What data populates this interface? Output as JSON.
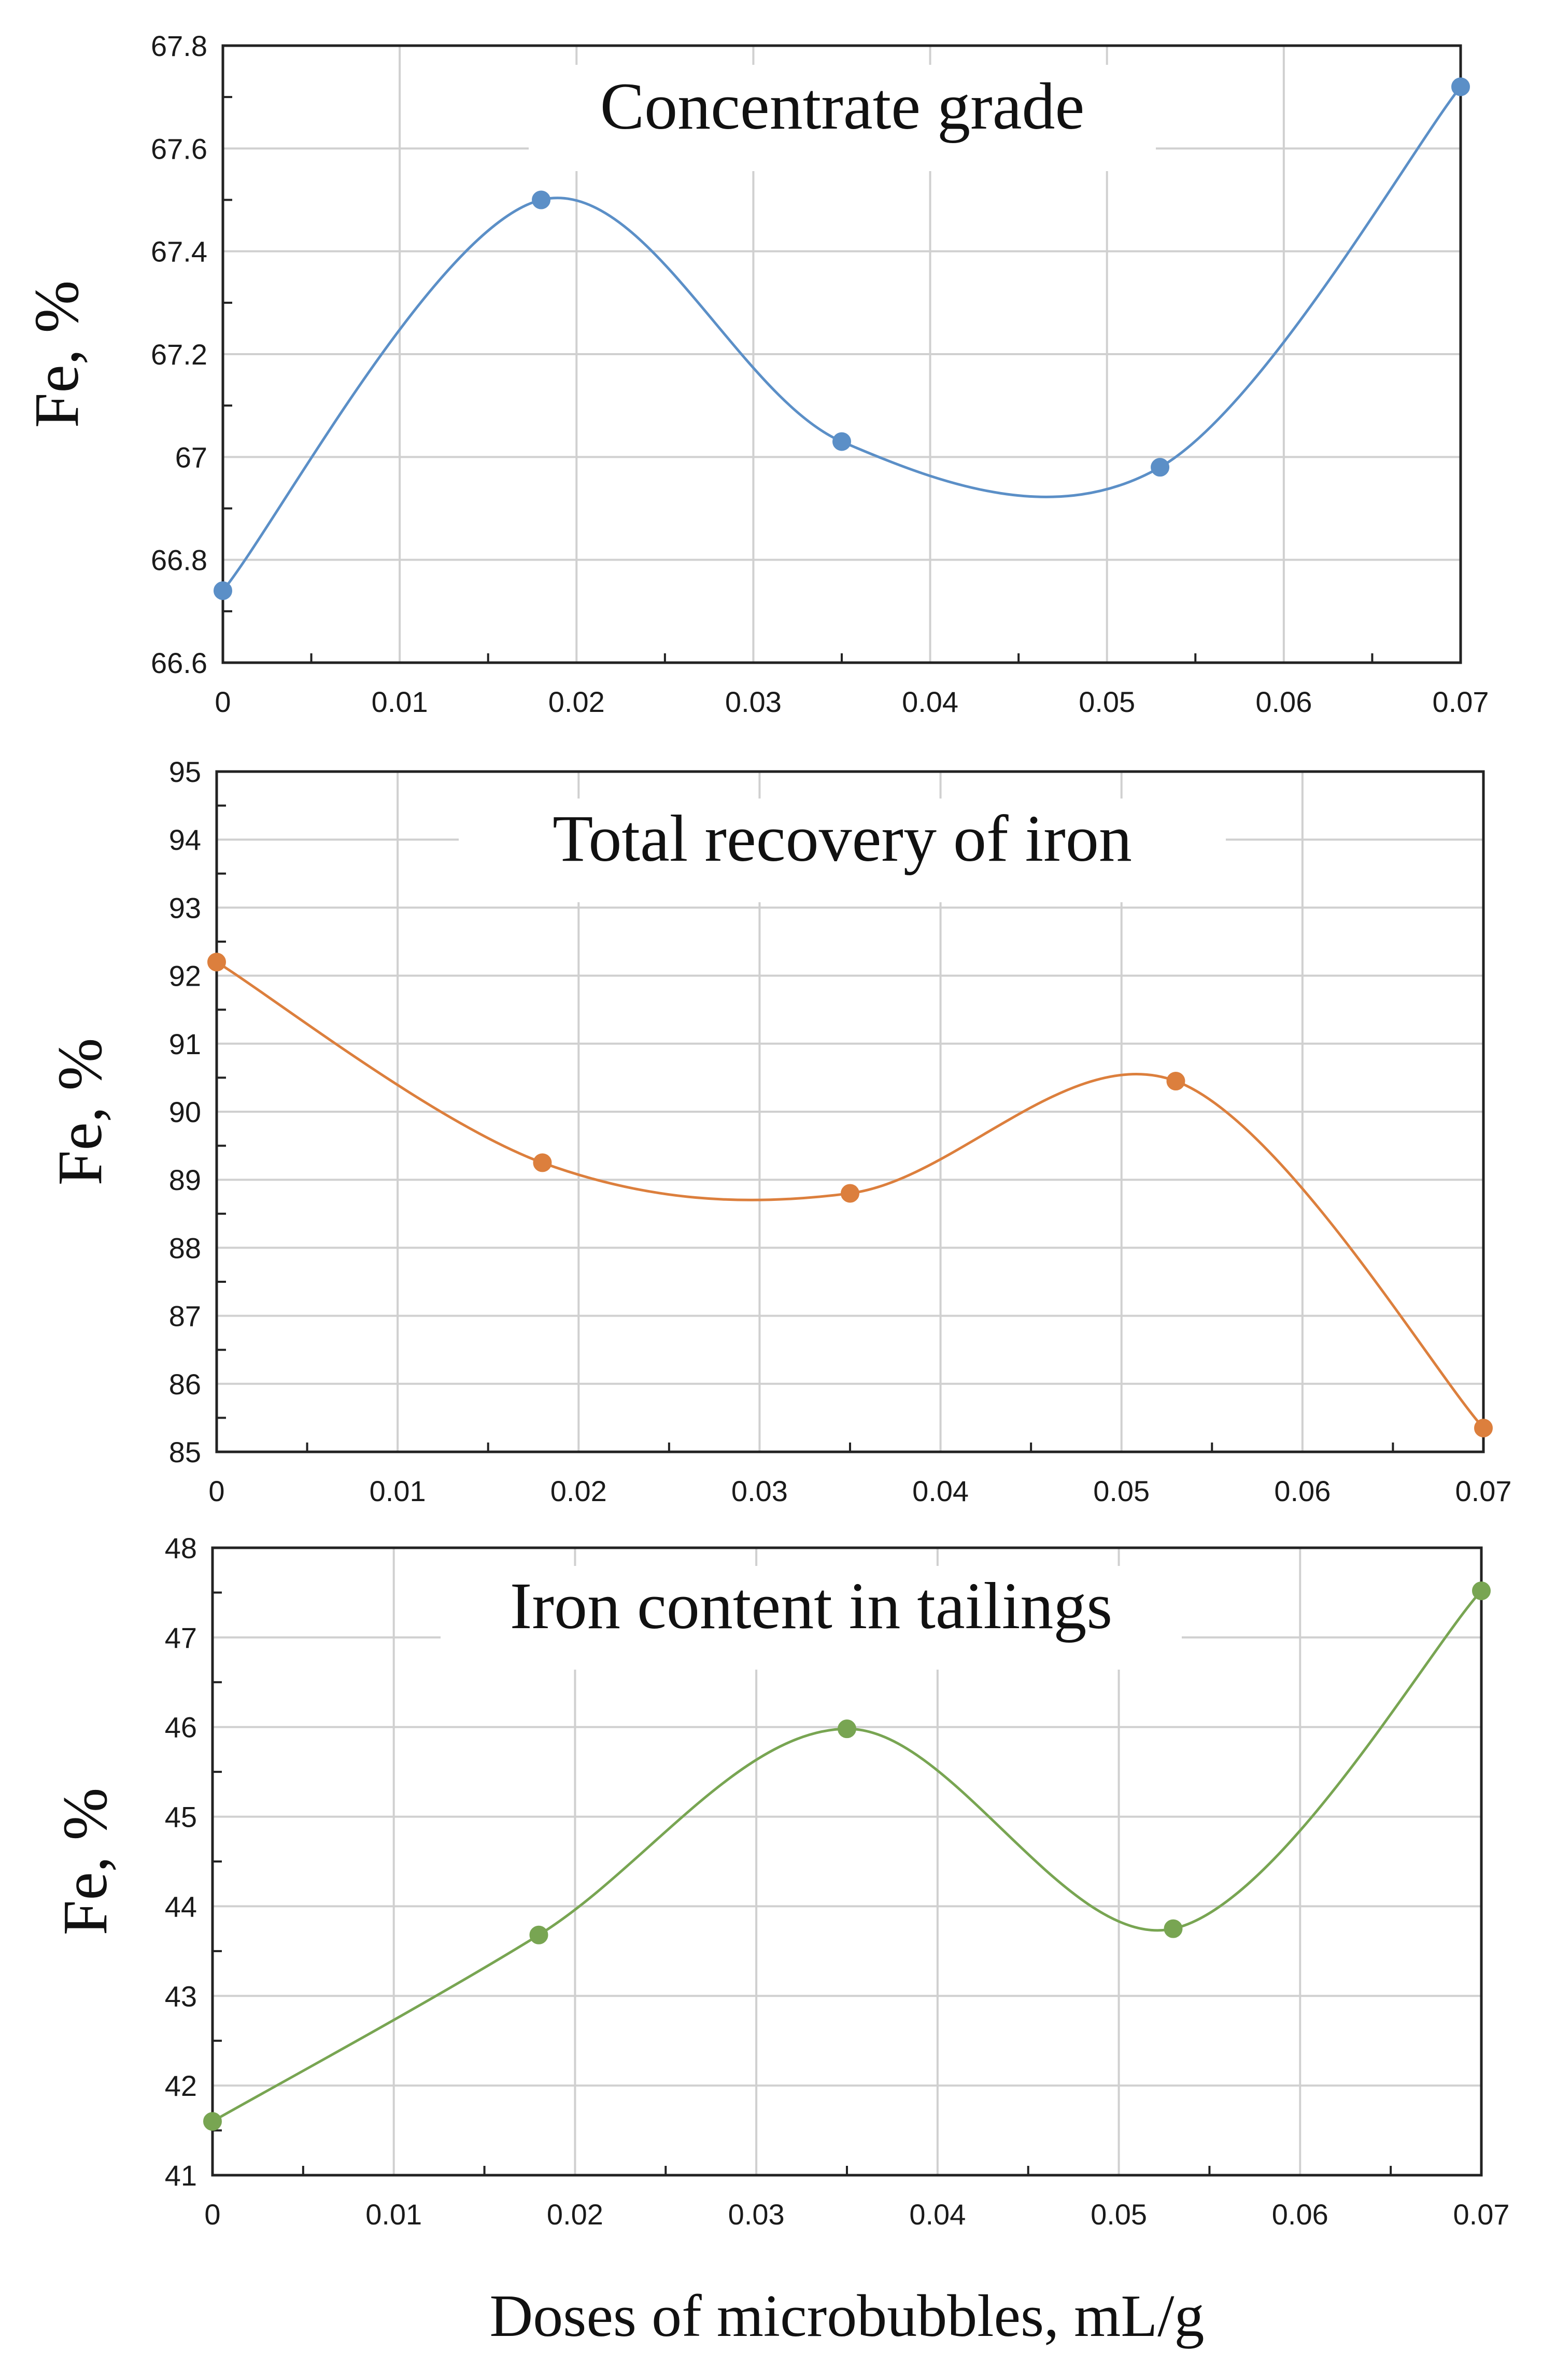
{
  "chart_data": [
    {
      "type": "line",
      "smooth": true,
      "title": "Concentrate grade",
      "ylabel": "Fe, %",
      "xlabel": "",
      "x": [
        0,
        0.018,
        0.035,
        0.053,
        0.07
      ],
      "series": [
        {
          "name": "Concentrate grade",
          "values": [
            66.74,
            67.5,
            67.03,
            66.98,
            67.72
          ]
        }
      ],
      "xlim": [
        0,
        0.07
      ],
      "ylim": [
        66.6,
        67.8
      ],
      "xticks": [
        0,
        0.01,
        0.02,
        0.03,
        0.04,
        0.05,
        0.06,
        0.07
      ],
      "xtick_labels": [
        "0",
        "0.01",
        "0.02",
        "0.03",
        "0.04",
        "0.05",
        "0.06",
        "0.07"
      ],
      "yticks": [
        66.6,
        66.8,
        67.0,
        67.2,
        67.4,
        67.6,
        67.8
      ],
      "ytick_labels": [
        "66.6",
        "66.8",
        "67",
        "67.2",
        "67.4",
        "67.6",
        "67.8"
      ],
      "color": "#5B8FC7",
      "grid": true
    },
    {
      "type": "line",
      "smooth": true,
      "title": "Total recovery of iron",
      "ylabel": "Fe, %",
      "xlabel": "",
      "x": [
        0,
        0.018,
        0.035,
        0.053,
        0.07
      ],
      "series": [
        {
          "name": "Total recovery of iron",
          "values": [
            92.2,
            89.25,
            88.8,
            90.45,
            85.35
          ]
        }
      ],
      "xlim": [
        0,
        0.07
      ],
      "ylim": [
        85,
        95
      ],
      "xticks": [
        0,
        0.01,
        0.02,
        0.03,
        0.04,
        0.05,
        0.06,
        0.07
      ],
      "xtick_labels": [
        "0",
        "0.01",
        "0.02",
        "0.03",
        "0.04",
        "0.05",
        "0.06",
        "0.07"
      ],
      "yticks": [
        85,
        86,
        87,
        88,
        89,
        90,
        91,
        92,
        93,
        94,
        95
      ],
      "ytick_labels": [
        "85",
        "86",
        "87",
        "88",
        "89",
        "90",
        "91",
        "92",
        "93",
        "94",
        "95"
      ],
      "color": "#DC7F3D",
      "grid": true
    },
    {
      "type": "line",
      "smooth": true,
      "title": "Iron content in tailings",
      "ylabel": "Fe, %",
      "xlabel": "Doses of microbubbles, mL/g",
      "x": [
        0,
        0.018,
        0.035,
        0.053,
        0.07
      ],
      "series": [
        {
          "name": "Iron content in tailings",
          "values": [
            41.6,
            43.68,
            45.98,
            43.75,
            47.52
          ]
        }
      ],
      "xlim": [
        0,
        0.07
      ],
      "ylim": [
        41,
        48
      ],
      "xticks": [
        0,
        0.01,
        0.02,
        0.03,
        0.04,
        0.05,
        0.06,
        0.07
      ],
      "xtick_labels": [
        "0",
        "0.01",
        "0.02",
        "0.03",
        "0.04",
        "0.05",
        "0.06",
        "0.07"
      ],
      "yticks": [
        41,
        42,
        43,
        44,
        45,
        46,
        47,
        48
      ],
      "ytick_labels": [
        "41",
        "42",
        "43",
        "44",
        "45",
        "46",
        "47",
        "48"
      ],
      "color": "#78A552",
      "grid": true
    }
  ]
}
